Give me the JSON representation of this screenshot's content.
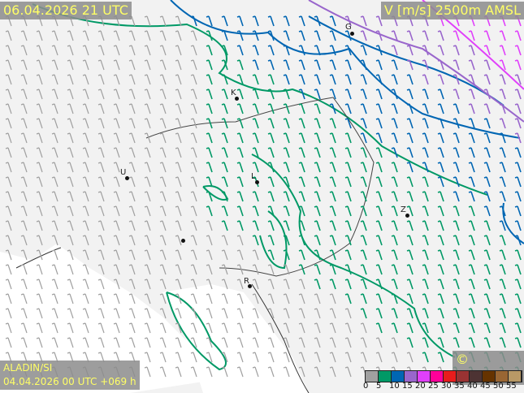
{
  "header": {
    "valid_time": "06.04.2026 21 UTC",
    "field": "V [m/s] 2500m AMSL"
  },
  "footer": {
    "model": "ALADIN/SI",
    "run": "04.04.2026 00 UTC +069 h",
    "copyright": "© meteo.si"
  },
  "cities": [
    {
      "label": "G"
    },
    {
      "label": "K"
    },
    {
      "label": "U"
    },
    {
      "label": "L"
    },
    {
      "label": "Z"
    },
    {
      "label": "R"
    }
  ],
  "legend": {
    "ticks": [
      "0",
      "5",
      "10",
      "15",
      "20",
      "25",
      "30",
      "35",
      "40",
      "45",
      "50",
      "55"
    ],
    "colors": [
      "#a0a0a0",
      "#009966",
      "#0066b3",
      "#9966cc",
      "#e040fb",
      "#ff0099",
      "#e81c1c",
      "#993333",
      "#4d3333",
      "#663300",
      "#996633",
      "#b89966"
    ]
  }
}
